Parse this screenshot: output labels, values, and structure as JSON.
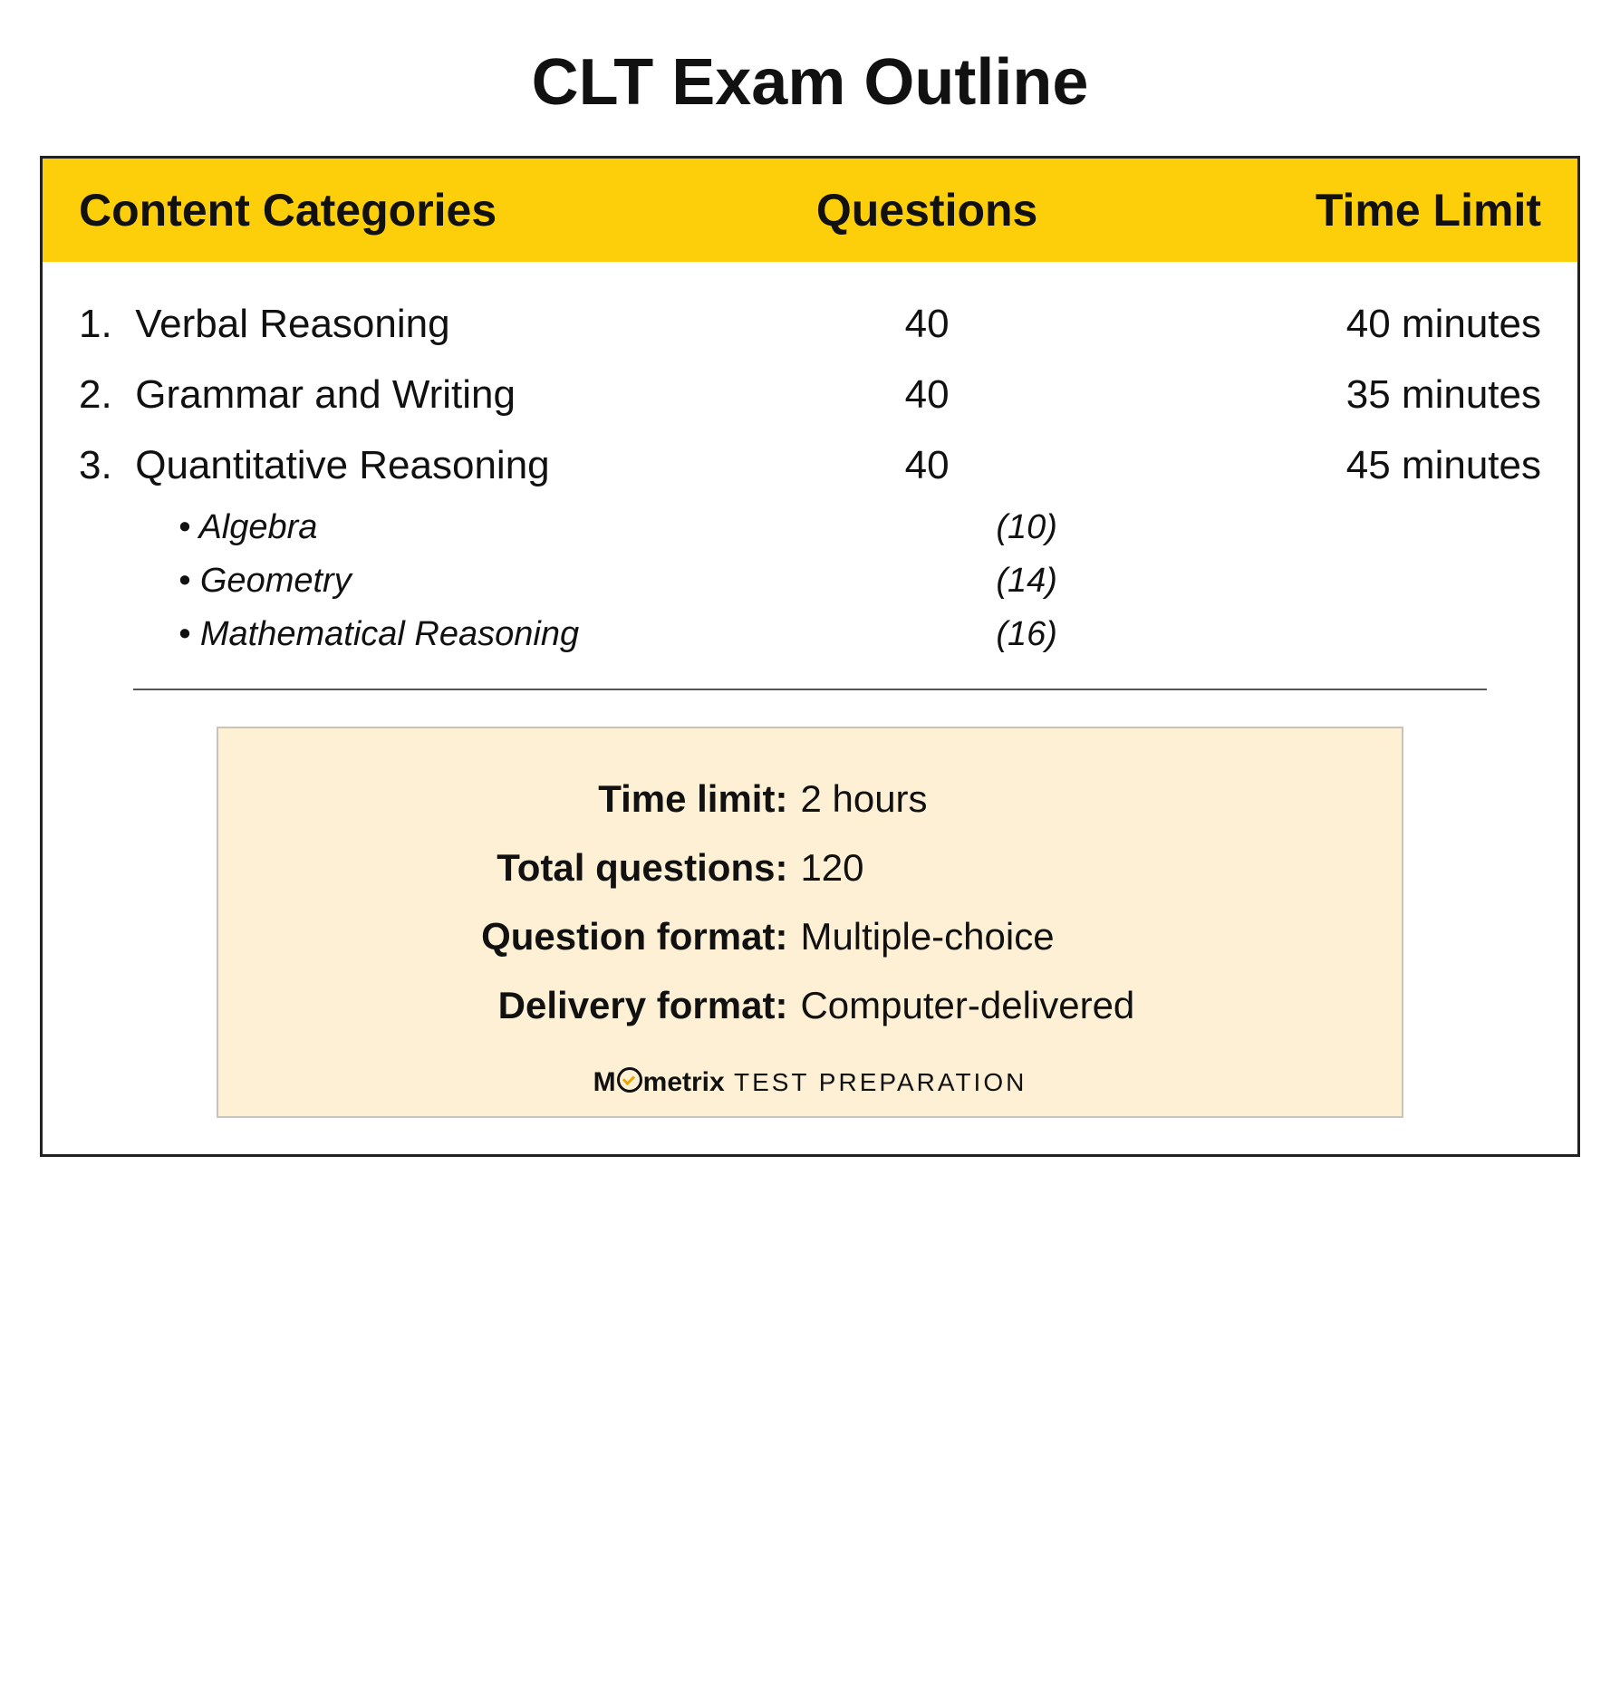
{
  "title": "CLT Exam Outline",
  "columns": {
    "category": "Content Categories",
    "questions": "Questions",
    "time": "Time Limit"
  },
  "rows": [
    {
      "n": "1.",
      "name": "Verbal Reasoning",
      "q": "40",
      "t": "40 minutes"
    },
    {
      "n": "2.",
      "name": "Grammar and Writing",
      "q": "40",
      "t": "35 minutes"
    },
    {
      "n": "3.",
      "name": "Quantitative Reasoning",
      "q": "40",
      "t": "45 minutes"
    }
  ],
  "subrows": [
    {
      "name": "Algebra",
      "q": "(10)"
    },
    {
      "name": "Geometry",
      "q": "(14)"
    },
    {
      "name": "Mathematical Reasoning",
      "q": "(16)"
    }
  ],
  "summary": [
    {
      "label": "Time limit:",
      "value": "2 hours"
    },
    {
      "label": "Total questions:",
      "value": "120"
    },
    {
      "label": "Question format:",
      "value": "Multiple-choice"
    },
    {
      "label": "Delivery format:",
      "value": "Computer-delivered"
    }
  ],
  "brand": {
    "pre": "M",
    "post": "metrix",
    "suffix": " TEST  PREPARATION"
  },
  "colors": {
    "header_bg": "#fccf0a",
    "summary_bg": "#fdf0d5",
    "summary_border": "#c9c3b9",
    "text": "#111111",
    "divider": "#555555",
    "check": "#e9a500"
  }
}
